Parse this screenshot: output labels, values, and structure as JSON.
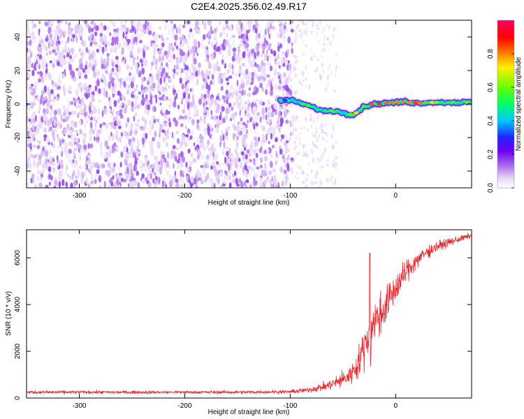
{
  "title": "C2E4.2025.356.02.49.R17",
  "chart_data": [
    {
      "type": "heatmap",
      "xlabel": "Height of straight line (km)",
      "ylabel": "Frequency (Hz)",
      "xlim": [
        -350,
        72
      ],
      "ylim": [
        -50,
        50
      ],
      "xticks": [
        -300,
        -200,
        -100,
        0
      ],
      "yticks": [
        -40,
        -20,
        0,
        20,
        40
      ],
      "xtick_labels": [
        "-300",
        "-200",
        "-100",
        "0"
      ],
      "ytick_labels": [
        "-40",
        "-20",
        "0",
        "20",
        "40"
      ],
      "colorbar": {
        "label": "Normalized spectral amplitude",
        "range": [
          0,
          1
        ],
        "ticks": [
          0.0,
          0.2,
          0.4,
          0.6,
          0.8
        ],
        "tick_labels": [
          "0.0",
          "0.2",
          "0.4",
          "0.6",
          "0.8"
        ],
        "colormap": [
          "#ffffff",
          "#e6d4f9",
          "#b27cf0",
          "#6f00f0",
          "#2222ff",
          "#00c8ff",
          "#00ff66",
          "#66ff00",
          "#ffee00",
          "#ff6600",
          "#ff0000",
          "#ff0066"
        ]
      },
      "carrier_track": {
        "x": [
          -110,
          -100,
          -90,
          -80,
          -70,
          -60,
          -50,
          -40,
          -30,
          -20,
          -10,
          0,
          10,
          20,
          30,
          40,
          50,
          60,
          72
        ],
        "y": [
          2,
          2.5,
          0.5,
          -1.5,
          -4,
          -4,
          -5,
          -6.5,
          -1.5,
          0,
          0.5,
          1,
          1.5,
          0.5,
          1,
          1,
          1,
          1,
          1
        ],
        "peak_amplitude": [
          0.45,
          0.5,
          0.55,
          0.6,
          0.62,
          0.65,
          0.6,
          0.7,
          0.75,
          0.85,
          0.95,
          0.9,
          1.0,
          0.9,
          0.75,
          0.7,
          0.65,
          0.6,
          0.6
        ]
      }
    },
    {
      "type": "line",
      "xlabel": "Height of straight line (km)",
      "ylabel": "SNR (10 * v/v)",
      "xlim": [
        -350,
        72
      ],
      "ylim": [
        0,
        7200
      ],
      "xticks": [
        -300,
        -200,
        -100,
        0
      ],
      "yticks": [
        0,
        2000,
        4000,
        6000
      ],
      "xtick_labels": [
        "-300",
        "-200",
        "-100",
        "0"
      ],
      "ytick_labels": [
        "0",
        "2000",
        "4000",
        "6000"
      ],
      "series": [
        {
          "name": "SNR",
          "color": "#e8242b",
          "x": [
            -350,
            -300,
            -250,
            -200,
            -150,
            -100,
            -85,
            -75,
            -65,
            -55,
            -45,
            -38,
            -32,
            -28,
            -25,
            -24.5,
            -24,
            -23,
            -20,
            -15,
            -10,
            0,
            10,
            20,
            30,
            40,
            50,
            60,
            72
          ],
          "y": [
            250,
            250,
            250,
            250,
            250,
            270,
            330,
            420,
            520,
            700,
            900,
            1300,
            1900,
            2450,
            2700,
            6200,
            1500,
            3000,
            3300,
            3500,
            3900,
            4700,
            5400,
            5900,
            6250,
            6500,
            6650,
            6800,
            6950
          ],
          "noise_amplitude": [
            60,
            60,
            60,
            60,
            60,
            70,
            100,
            130,
            180,
            260,
            360,
            500,
            650,
            800,
            900,
            0,
            700,
            800,
            850,
            800,
            750,
            600,
            450,
            350,
            260,
            200,
            160,
            130,
            110
          ]
        }
      ]
    }
  ]
}
